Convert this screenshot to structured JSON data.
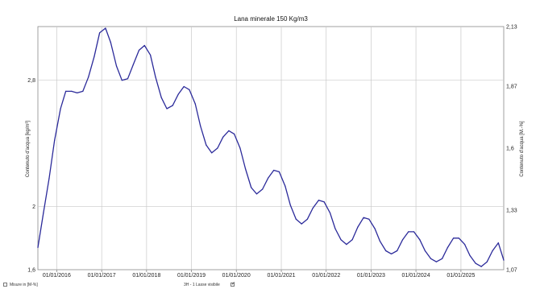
{
  "chart_data": {
    "type": "line",
    "title": "Lana minerale 150 Kg/m3",
    "ylabel_left": "Contenuto d'acqua [kg/m³]",
    "ylabel_right": "Contenuto d'acqua [M.-%]",
    "x_range": [
      "2015-08-01",
      "2025-12-15"
    ],
    "x_ticks": [
      "01/01/2016",
      "01/01/2017",
      "01/01/2018",
      "01/01/2019",
      "01/01/2020",
      "01/01/2021",
      "01/01/2022",
      "01/01/2023",
      "01/01/2024",
      "01/01/2025"
    ],
    "ylim_left": [
      1.6,
      3.14
    ],
    "yticks_left": [
      "1,6",
      "2",
      "2,8"
    ],
    "ylim_right": [
      1.07,
      2.13
    ],
    "yticks_right": [
      "1,07",
      "1,33",
      "1,6",
      "1,87",
      "2,13"
    ],
    "grid": true,
    "line_color": "#2b2a9a",
    "series": [
      {
        "x": [
          "2015-08-01",
          "2015-09-15",
          "2015-11-01",
          "2015-12-15",
          "2016-02-01",
          "2016-03-15",
          "2016-05-01",
          "2016-06-15",
          "2016-08-01",
          "2016-09-15",
          "2016-11-01",
          "2016-12-15",
          "2017-02-01",
          "2017-03-15",
          "2017-05-01",
          "2017-06-15",
          "2017-08-01",
          "2017-09-15",
          "2017-11-01",
          "2017-12-15",
          "2018-02-01",
          "2018-03-15",
          "2018-05-01",
          "2018-06-15",
          "2018-08-01",
          "2018-09-15",
          "2018-11-01",
          "2018-12-15",
          "2019-02-01",
          "2019-03-15",
          "2019-05-01",
          "2019-06-15",
          "2019-08-01",
          "2019-09-15",
          "2019-11-01",
          "2019-12-15",
          "2020-02-01",
          "2020-03-15",
          "2020-05-01",
          "2020-06-15",
          "2020-08-01",
          "2020-09-15",
          "2020-11-01",
          "2020-12-15",
          "2021-02-01",
          "2021-03-15",
          "2021-05-01",
          "2021-06-15",
          "2021-08-01",
          "2021-09-15",
          "2021-11-01",
          "2021-12-15",
          "2022-02-01",
          "2022-03-15",
          "2022-05-01",
          "2022-06-15",
          "2022-08-01",
          "2022-09-15",
          "2022-11-01",
          "2022-12-15",
          "2023-02-01",
          "2023-03-15",
          "2023-05-01",
          "2023-06-15",
          "2023-08-01",
          "2023-09-15",
          "2023-11-01",
          "2023-12-15",
          "2024-02-01",
          "2024-03-15",
          "2024-05-01",
          "2024-06-15",
          "2024-08-01",
          "2024-09-15",
          "2024-11-01",
          "2024-12-15",
          "2025-02-01",
          "2025-03-15",
          "2025-05-01",
          "2025-06-15",
          "2025-08-01",
          "2025-09-15",
          "2025-11-01",
          "2025-12-15"
        ],
        "y": [
          1.74,
          1.96,
          2.18,
          2.42,
          2.62,
          2.73,
          2.73,
          2.72,
          2.73,
          2.82,
          2.95,
          3.1,
          3.13,
          3.04,
          2.89,
          2.8,
          2.81,
          2.9,
          2.99,
          3.02,
          2.96,
          2.82,
          2.69,
          2.62,
          2.64,
          2.71,
          2.76,
          2.74,
          2.65,
          2.51,
          2.39,
          2.34,
          2.37,
          2.44,
          2.48,
          2.46,
          2.37,
          2.24,
          2.12,
          2.08,
          2.11,
          2.18,
          2.23,
          2.22,
          2.13,
          2.01,
          1.92,
          1.89,
          1.92,
          1.99,
          2.04,
          2.03,
          1.96,
          1.86,
          1.79,
          1.76,
          1.79,
          1.87,
          1.93,
          1.92,
          1.86,
          1.78,
          1.72,
          1.7,
          1.72,
          1.79,
          1.84,
          1.84,
          1.79,
          1.72,
          1.67,
          1.65,
          1.67,
          1.74,
          1.8,
          1.8,
          1.76,
          1.69,
          1.64,
          1.62,
          1.65,
          1.72,
          1.77,
          1.66
        ]
      }
    ]
  },
  "footer": {
    "checkbox1_label": "Misure in [M-%]",
    "status_text": "3H - 1 Lasse visibile"
  }
}
